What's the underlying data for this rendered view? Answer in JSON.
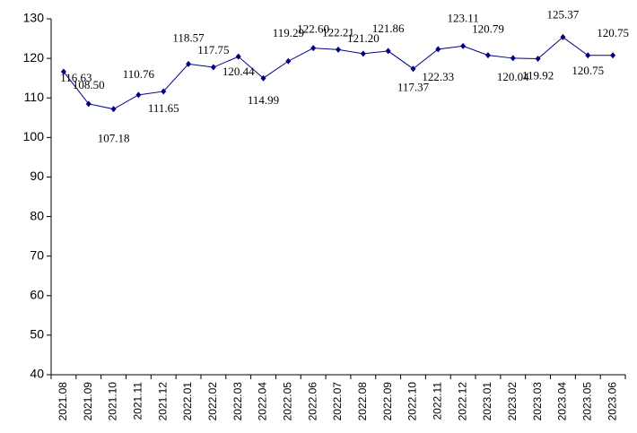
{
  "chart_data": {
    "type": "line",
    "categories": [
      "2021.08",
      "2021.09",
      "2021.10",
      "2021.11",
      "2021.12",
      "2022.01",
      "2022.02",
      "2022.03",
      "2022.04",
      "2022.05",
      "2022.06",
      "2022.07",
      "2022.08",
      "2022.09",
      "2022.10",
      "2022.11",
      "2022.12",
      "2023.01",
      "2023.02",
      "2023.03",
      "2023.04",
      "2023.05",
      "2023.06"
    ],
    "series": [
      {
        "color": "#000080",
        "values": [
          116.63,
          108.5,
          107.18,
          110.76,
          111.65,
          118.57,
          117.75,
          120.44,
          114.99,
          119.29,
          122.6,
          122.21,
          121.2,
          121.86,
          117.37,
          122.33,
          123.11,
          120.79,
          120.04,
          119.92,
          125.37,
          120.75,
          120.75
        ],
        "value_labels": [
          "116.63",
          "108.50",
          "107.18",
          "110.76",
          "111.65",
          "118.57",
          "117.75",
          "120.44",
          "114.99",
          "119.29",
          "122.60",
          "122.21",
          "121.20",
          "121.86",
          "117.37",
          "122.33",
          "123.11",
          "120.79",
          "120.04",
          "119.92",
          "125.37",
          "120.75",
          "120.75"
        ]
      }
    ],
    "ylim": [
      40,
      130
    ],
    "yticks": [
      40,
      50,
      60,
      70,
      80,
      90,
      100,
      110,
      120,
      130
    ]
  }
}
